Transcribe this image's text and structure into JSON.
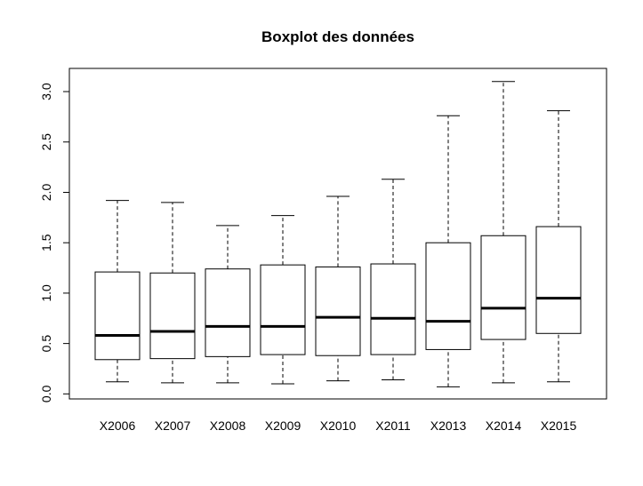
{
  "chart_data": {
    "type": "boxplot",
    "title": "Boxplot des données",
    "xlabel": "",
    "ylabel": "",
    "ylim": [
      -0.05,
      3.23
    ],
    "yticks": [
      "0.0",
      "0.5",
      "1.0",
      "1.5",
      "2.0",
      "2.5",
      "3.0"
    ],
    "grid": false,
    "categories": [
      "X2006",
      "X2007",
      "X2008",
      "X2009",
      "X2010",
      "X2011",
      "X2013",
      "X2014",
      "X2015"
    ],
    "boxes": [
      {
        "label": "X2006",
        "min": 0.12,
        "q1": 0.34,
        "median": 0.58,
        "q3": 1.21,
        "max": 1.92
      },
      {
        "label": "X2007",
        "min": 0.11,
        "q1": 0.35,
        "median": 0.62,
        "q3": 1.2,
        "max": 1.9
      },
      {
        "label": "X2008",
        "min": 0.11,
        "q1": 0.37,
        "median": 0.67,
        "q3": 1.24,
        "max": 1.67
      },
      {
        "label": "X2009",
        "min": 0.1,
        "q1": 0.39,
        "median": 0.67,
        "q3": 1.28,
        "max": 1.77
      },
      {
        "label": "X2010",
        "min": 0.13,
        "q1": 0.38,
        "median": 0.76,
        "q3": 1.26,
        "max": 1.96
      },
      {
        "label": "X2011",
        "min": 0.14,
        "q1": 0.39,
        "median": 0.75,
        "q3": 1.29,
        "max": 2.13
      },
      {
        "label": "X2013",
        "min": 0.07,
        "q1": 0.44,
        "median": 0.72,
        "q3": 1.5,
        "max": 2.76
      },
      {
        "label": "X2014",
        "min": 0.11,
        "q1": 0.54,
        "median": 0.85,
        "q3": 1.57,
        "max": 3.1
      },
      {
        "label": "X2015",
        "min": 0.12,
        "q1": 0.6,
        "median": 0.95,
        "q3": 1.66,
        "max": 2.81
      }
    ],
    "colors": {
      "stroke": "#000000",
      "fill": "#ffffff"
    }
  }
}
